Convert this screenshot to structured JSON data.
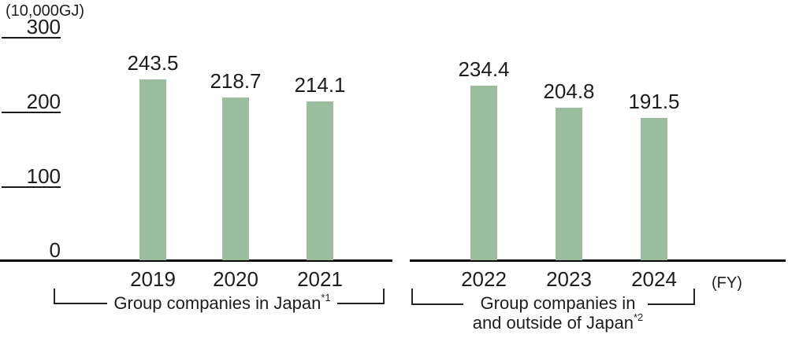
{
  "chart_data": {
    "type": "bar",
    "unit_label": "(10,000GJ)",
    "fy_label": "(FY)",
    "ylim": [
      0,
      300
    ],
    "yticks": [
      "300",
      "200",
      "100",
      "0"
    ],
    "grid": "tick-dashes-left-only",
    "legend": "none",
    "bar_color": "#9abd9e",
    "groups": [
      {
        "label_line1": "Group companies in Japan",
        "label_sup": "*1",
        "categories": [
          "2019",
          "2020",
          "2021"
        ],
        "values": [
          243.5,
          218.7,
          214.1
        ]
      },
      {
        "label_line1": "Group companies in",
        "label_line2": "and outside of Japan",
        "label_sup": "*2",
        "categories": [
          "2022",
          "2023",
          "2024"
        ],
        "values": [
          234.4,
          204.8,
          191.5
        ]
      }
    ]
  }
}
